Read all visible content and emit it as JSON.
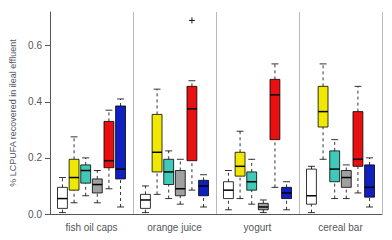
{
  "chart_data": {
    "type": "box",
    "categories": [
      "fish oil caps",
      "orange juice",
      "yogurt",
      "cereal bar"
    ],
    "ylabel": "% LCPUFA recovered in ileal effluent",
    "ylim": [
      0.0,
      0.72
    ],
    "yticks": [
      {
        "value": 0.0,
        "label": "0.0"
      },
      0.2,
      0.4,
      0.6
    ],
    "series": [
      {
        "color": "white",
        "values": [
          {
            "q1": 0.02,
            "med": 0.055,
            "q3": 0.095,
            "whislo": 0.005,
            "whishi": 0.13,
            "fliers": []
          },
          {
            "q1": 0.02,
            "med": 0.05,
            "q3": 0.07,
            "whislo": 0.005,
            "whishi": 0.1,
            "fliers": []
          },
          {
            "q1": 0.055,
            "med": 0.085,
            "q3": 0.115,
            "whislo": 0.015,
            "whishi": 0.155,
            "fliers": []
          },
          {
            "q1": 0.035,
            "med": 0.065,
            "q3": 0.16,
            "whislo": 0.005,
            "whishi": 0.17,
            "fliers": []
          }
        ]
      },
      {
        "color": "#f0e800",
        "values": [
          {
            "q1": 0.085,
            "med": 0.13,
            "q3": 0.195,
            "whislo": 0.04,
            "whishi": 0.275,
            "fliers": []
          },
          {
            "q1": 0.15,
            "med": 0.22,
            "q3": 0.355,
            "whislo": 0.07,
            "whishi": 0.445,
            "fliers": []
          },
          {
            "q1": 0.135,
            "med": 0.17,
            "q3": 0.22,
            "whislo": 0.055,
            "whishi": 0.295,
            "fliers": []
          },
          {
            "q1": 0.31,
            "med": 0.365,
            "q3": 0.455,
            "whislo": 0.195,
            "whishi": 0.535,
            "fliers": []
          }
        ]
      },
      {
        "color": "#40c8b8",
        "values": [
          {
            "q1": 0.11,
            "med": 0.155,
            "q3": 0.175,
            "whislo": 0.065,
            "whishi": 0.2,
            "fliers": []
          },
          {
            "q1": 0.105,
            "med": 0.15,
            "q3": 0.195,
            "whislo": 0.055,
            "whishi": 0.225,
            "fliers": []
          },
          {
            "q1": 0.085,
            "med": 0.115,
            "q3": 0.15,
            "whislo": 0.035,
            "whishi": 0.195,
            "fliers": []
          },
          {
            "q1": 0.115,
            "med": 0.16,
            "q3": 0.225,
            "whislo": 0.055,
            "whishi": 0.265,
            "fliers": []
          }
        ]
      },
      {
        "color": "#a0a0a0",
        "values": [
          {
            "q1": 0.075,
            "med": 0.105,
            "q3": 0.125,
            "whislo": 0.04,
            "whishi": 0.155,
            "fliers": []
          },
          {
            "q1": 0.065,
            "med": 0.09,
            "q3": 0.155,
            "whislo": 0.035,
            "whishi": 0.195,
            "fliers": []
          },
          {
            "q1": 0.015,
            "med": 0.025,
            "q3": 0.038,
            "whislo": 0.005,
            "whishi": 0.05,
            "fliers": []
          },
          {
            "q1": 0.095,
            "med": 0.13,
            "q3": 0.155,
            "whislo": 0.055,
            "whishi": 0.175,
            "fliers": []
          }
        ]
      },
      {
        "color": "#e81010",
        "values": [
          {
            "q1": 0.165,
            "med": 0.19,
            "q3": 0.33,
            "whislo": 0.09,
            "whishi": 0.37,
            "fliers": []
          },
          {
            "q1": 0.19,
            "med": 0.375,
            "q3": 0.455,
            "whislo": 0.085,
            "whishi": 0.475,
            "fliers": [
              0.69
            ]
          },
          {
            "q1": 0.265,
            "med": 0.425,
            "q3": 0.48,
            "whislo": 0.095,
            "whishi": 0.535,
            "fliers": []
          },
          {
            "q1": 0.17,
            "med": 0.195,
            "q3": 0.365,
            "whislo": 0.075,
            "whishi": 0.455,
            "fliers": []
          }
        ]
      },
      {
        "color": "#1020c0",
        "values": [
          {
            "q1": 0.125,
            "med": 0.16,
            "q3": 0.385,
            "whislo": 0.025,
            "whishi": 0.41,
            "fliers": []
          },
          {
            "q1": 0.065,
            "med": 0.1,
            "q3": 0.12,
            "whislo": 0.025,
            "whishi": 0.14,
            "fliers": []
          },
          {
            "q1": 0.055,
            "med": 0.075,
            "q3": 0.095,
            "whislo": 0.015,
            "whishi": 0.115,
            "fliers": []
          },
          {
            "q1": 0.06,
            "med": 0.095,
            "q3": 0.175,
            "whislo": 0.025,
            "whishi": 0.2,
            "fliers": []
          }
        ]
      }
    ]
  }
}
